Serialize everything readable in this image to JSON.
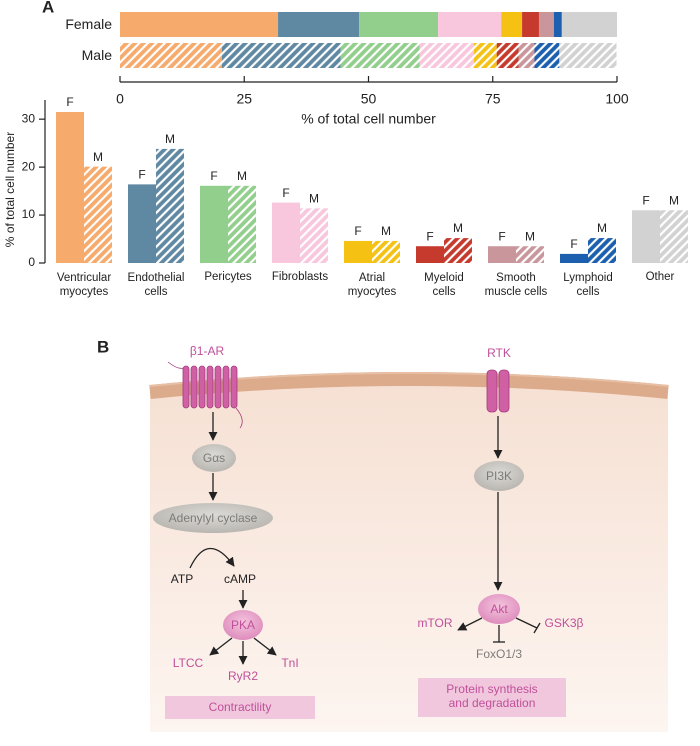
{
  "panel_labels": {
    "a": "A",
    "b": "B"
  },
  "chart_data": [
    {
      "type": "stacked-bar-h",
      "xlabel": "% of total cell number",
      "xlim": [
        0,
        100
      ],
      "xticks": [
        0,
        25,
        50,
        75,
        100
      ],
      "colors": [
        "#f6aa6c",
        "#5f88a3",
        "#92cf8c",
        "#f8c7dd",
        "#f5c112",
        "#c63a2d",
        "#c9969c",
        "#1b5fae",
        "#d2d2d2"
      ],
      "series": [
        {
          "name": "Female",
          "values": [
            31.8,
            16.3,
            15.9,
            12.7,
            4.2,
            3.4,
            3.0,
            1.6,
            11.1
          ]
        },
        {
          "name": "Male",
          "hatched": true,
          "values": [
            20.5,
            23.9,
            15.9,
            10.9,
            4.6,
            4.4,
            3.2,
            5.0,
            11.5
          ]
        }
      ]
    },
    {
      "type": "bar",
      "ylabel": "% of total cell number",
      "categories": [
        "Ventricular\nmyocytes",
        "Endothelial\ncells",
        "Pericytes",
        "Fibroblasts",
        "Atrial\nmyocytes",
        "Myeloid\ncells",
        "Smooth\nmuscle cells",
        "Lymphoid\ncells",
        "Other"
      ],
      "ylim": [
        0,
        34
      ],
      "yticks": [
        0,
        10,
        20,
        30
      ],
      "colors": [
        "#f6aa6c",
        "#5f88a3",
        "#92cf8c",
        "#f8c7dd",
        "#f5c112",
        "#c63a2d",
        "#c9969c",
        "#1b5fae",
        "#d2d2d2"
      ],
      "series": [
        {
          "name": "F",
          "values": [
            31.5,
            16.4,
            16.1,
            12.6,
            4.6,
            3.5,
            3.5,
            1.9,
            11.0
          ]
        },
        {
          "name": "M",
          "hatched": true,
          "values": [
            20.1,
            23.8,
            16.1,
            11.4,
            4.6,
            5.2,
            3.5,
            5.2,
            11.0
          ]
        }
      ]
    }
  ],
  "diagram": {
    "left": {
      "receptor": "β1-AR",
      "g_protein": "Gαs",
      "enzyme": "Adenylyl cyclase",
      "substrate": "ATP",
      "product": "cAMP",
      "kinase": "PKA",
      "targets": [
        "LTCC",
        "RyR2",
        "TnI"
      ],
      "outcome": "Contractility"
    },
    "right": {
      "receptor": "RTK",
      "kinase": "PI3K",
      "effector": "Akt",
      "targets": [
        "mTOR",
        "FoxO1/3",
        "GSK3β"
      ],
      "outcome": "Protein synthesis\nand degradation"
    }
  }
}
